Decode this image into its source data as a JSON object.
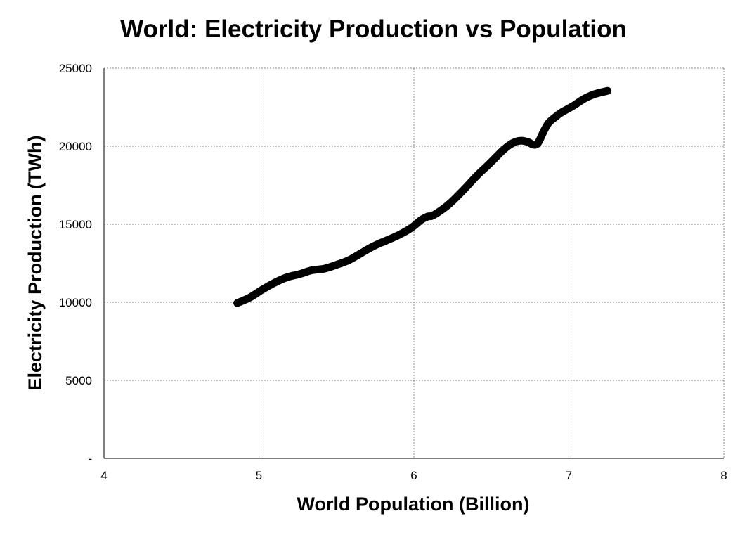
{
  "chart_data": {
    "type": "line",
    "title": "World: Electricity Production vs Population",
    "xlabel": "World Population (Billion)",
    "ylabel": "Electricity Production (TWh)",
    "xlim": [
      4,
      8
    ],
    "ylim": [
      0,
      25000
    ],
    "x_ticks": [
      4,
      5,
      6,
      7,
      8
    ],
    "x_tick_labels": [
      "4",
      "5",
      "6",
      "7",
      "8"
    ],
    "y_ticks": [
      0,
      5000,
      10000,
      15000,
      20000,
      25000
    ],
    "y_tick_labels": [
      "-",
      "5000",
      "10000",
      "15000",
      "20000",
      "25000"
    ],
    "grid": true,
    "line_color": "#000000",
    "series": [
      {
        "x": [
          4.86,
          4.94,
          5.02,
          5.1,
          5.18,
          5.26,
          5.34,
          5.42,
          5.5,
          5.58,
          5.66,
          5.74,
          5.82,
          5.9,
          5.98,
          6.05,
          6.09,
          6.12,
          6.19,
          6.25,
          6.33,
          6.41,
          6.49,
          6.57,
          6.62,
          6.66,
          6.7,
          6.74,
          6.77,
          6.8,
          6.84,
          6.87,
          6.91,
          6.95,
          7.03,
          7.1,
          7.17,
          7.25
        ],
        "y": [
          9950,
          10300,
          10800,
          11250,
          11600,
          11800,
          12050,
          12150,
          12400,
          12700,
          13150,
          13600,
          13950,
          14300,
          14750,
          15300,
          15500,
          15550,
          16000,
          16500,
          17300,
          18150,
          18900,
          19700,
          20100,
          20300,
          20350,
          20250,
          20100,
          20200,
          21000,
          21500,
          21850,
          22150,
          22600,
          23050,
          23350,
          23550
        ]
      }
    ]
  }
}
